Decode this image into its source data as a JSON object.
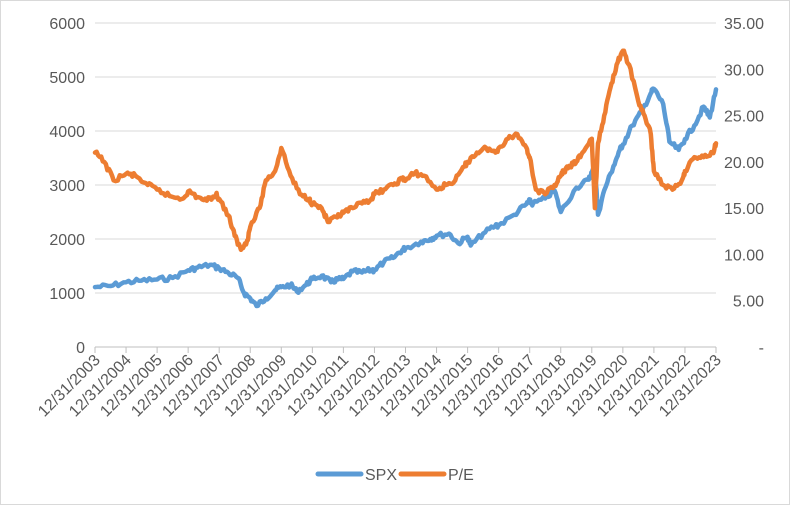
{
  "chart_data": {
    "type": "line",
    "x_tick_labels": [
      "12/31/2003",
      "12/31/2004",
      "12/31/2005",
      "12/31/2006",
      "12/31/2007",
      "12/31/2008",
      "12/31/2009",
      "12/31/2010",
      "12/31/2011",
      "12/31/2012",
      "12/31/2013",
      "12/31/2014",
      "12/31/2015",
      "12/31/2016",
      "12/31/2017",
      "12/31/2018",
      "12/31/2019",
      "12/31/2020",
      "12/31/2021",
      "12/31/2022",
      "12/31/2023"
    ],
    "y_left": {
      "min": 0,
      "max": 6000,
      "ticks": [
        "0",
        "1000",
        "2000",
        "3000",
        "4000",
        "5000",
        "6000"
      ]
    },
    "y_right": {
      "min": 0,
      "max": 35,
      "ticks": [
        "-",
        "5.00",
        "10.00",
        "15.00",
        "20.00",
        "25.00",
        "30.00",
        "35.00"
      ]
    },
    "grid": true,
    "legend_position": "bottom",
    "series": [
      {
        "name": "SPX",
        "axis": "left",
        "color": "#5b9bd5",
        "x": [
          2004.0,
          2004.5,
          2005.0,
          2005.5,
          2006.0,
          2006.5,
          2007.0,
          2007.3,
          2007.7,
          2008.0,
          2008.3,
          2008.6,
          2008.8,
          2009.0,
          2009.2,
          2009.5,
          2009.8,
          2010.0,
          2010.3,
          2010.5,
          2010.8,
          2011.0,
          2011.3,
          2011.6,
          2011.8,
          2012.0,
          2012.3,
          2012.6,
          2012.9,
          2013.0,
          2013.3,
          2013.6,
          2013.9,
          2014.0,
          2014.5,
          2014.8,
          2015.0,
          2015.4,
          2015.7,
          2016.0,
          2016.1,
          2016.5,
          2016.9,
          2017.0,
          2017.5,
          2017.9,
          2018.0,
          2018.1,
          2018.5,
          2018.8,
          2019.0,
          2019.5,
          2019.9,
          2020.0,
          2020.1,
          2020.2,
          2020.4,
          2020.7,
          2020.9,
          2021.0,
          2021.3,
          2021.6,
          2021.9,
          2022.0,
          2022.3,
          2022.5,
          2022.8,
          2023.0,
          2023.3,
          2023.6,
          2023.8,
          2024.0
        ],
        "y": [
          1110,
          1130,
          1200,
          1230,
          1250,
          1280,
          1420,
          1470,
          1520,
          1460,
          1370,
          1280,
          1000,
          900,
          760,
          900,
          1050,
          1110,
          1150,
          1030,
          1150,
          1260,
          1320,
          1200,
          1250,
          1260,
          1400,
          1380,
          1430,
          1420,
          1570,
          1650,
          1800,
          1830,
          1950,
          2000,
          2060,
          2100,
          1920,
          2040,
          1880,
          2100,
          2250,
          2250,
          2450,
          2650,
          2700,
          2650,
          2750,
          2900,
          2500,
          2950,
          3100,
          3230,
          3350,
          2450,
          2900,
          3350,
          3650,
          3750,
          4100,
          4350,
          4700,
          4780,
          4500,
          3800,
          3650,
          3850,
          4100,
          4450,
          4250,
          4770
        ]
      },
      {
        "name": "P/E",
        "axis": "right",
        "color": "#ed7d31",
        "x": [
          2004.0,
          2004.3,
          2004.6,
          2005.0,
          2005.3,
          2005.7,
          2006.0,
          2006.4,
          2006.8,
          2007.0,
          2007.3,
          2007.6,
          2007.9,
          2008.0,
          2008.3,
          2008.5,
          2008.7,
          2008.9,
          2009.0,
          2009.3,
          2009.5,
          2009.8,
          2010.0,
          2010.3,
          2010.6,
          2010.9,
          2011.0,
          2011.3,
          2011.5,
          2011.8,
          2012.0,
          2012.3,
          2012.6,
          2012.9,
          2013.0,
          2013.3,
          2013.6,
          2013.9,
          2014.0,
          2014.3,
          2014.6,
          2015.0,
          2015.3,
          2015.6,
          2015.9,
          2016.0,
          2016.3,
          2016.6,
          2016.9,
          2017.0,
          2017.3,
          2017.6,
          2017.9,
          2018.0,
          2018.2,
          2018.5,
          2018.8,
          2019.0,
          2019.1,
          2019.3,
          2019.5,
          2019.7,
          2020.0,
          2020.1,
          2020.2,
          2020.4,
          2020.6,
          2020.8,
          2021.0,
          2021.2,
          2021.5,
          2021.7,
          2021.9,
          2022.0,
          2022.3,
          2022.6,
          2022.9,
          2023.0,
          2023.3,
          2023.6,
          2023.9,
          2024.0
        ],
        "y": [
          21.0,
          20.0,
          18.0,
          18.7,
          18.5,
          17.5,
          17.0,
          16.3,
          16.0,
          16.8,
          16.2,
          15.8,
          16.5,
          16.0,
          14.2,
          12.0,
          10.5,
          11.5,
          13.0,
          15.0,
          18.0,
          19.0,
          21.5,
          18.5,
          16.5,
          16.0,
          15.5,
          15.0,
          13.5,
          14.0,
          14.5,
          15.0,
          15.5,
          16.0,
          16.5,
          17.0,
          17.5,
          18.2,
          18.0,
          18.8,
          18.5,
          17.0,
          17.5,
          18.0,
          19.5,
          20.0,
          21.0,
          21.5,
          21.0,
          21.5,
          22.5,
          23.0,
          21.5,
          20.5,
          17.0,
          16.5,
          17.5,
          18.5,
          19.0,
          19.5,
          20.0,
          21.0,
          22.5,
          15.0,
          22.0,
          25.0,
          28.0,
          30.5,
          32.0,
          30.5,
          26.5,
          25.0,
          23.0,
          19.0,
          17.5,
          17.0,
          18.0,
          19.0,
          20.5,
          20.5,
          21.0,
          22.0
        ]
      }
    ]
  },
  "legend": {
    "items": [
      {
        "label": "SPX",
        "color": "#5b9bd5"
      },
      {
        "label": "P/E",
        "color": "#ed7d31"
      }
    ]
  }
}
